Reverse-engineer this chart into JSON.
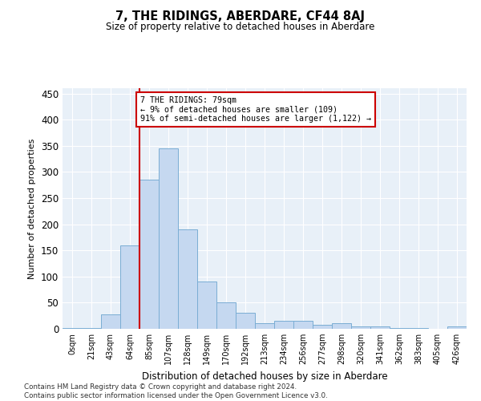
{
  "title": "7, THE RIDINGS, ABERDARE, CF44 8AJ",
  "subtitle": "Size of property relative to detached houses in Aberdare",
  "xlabel": "Distribution of detached houses by size in Aberdare",
  "ylabel": "Number of detached properties",
  "bar_labels": [
    "0sqm",
    "21sqm",
    "43sqm",
    "64sqm",
    "85sqm",
    "107sqm",
    "128sqm",
    "149sqm",
    "170sqm",
    "192sqm",
    "213sqm",
    "234sqm",
    "256sqm",
    "277sqm",
    "298sqm",
    "320sqm",
    "341sqm",
    "362sqm",
    "383sqm",
    "405sqm",
    "426sqm"
  ],
  "bar_values": [
    2,
    2,
    28,
    160,
    285,
    345,
    190,
    90,
    50,
    30,
    10,
    15,
    15,
    8,
    10,
    5,
    5,
    2,
    1,
    0,
    5
  ],
  "bar_color": "#c5d8f0",
  "bar_edge_color": "#7aadd4",
  "vline_x_index": 3,
  "vline_color": "#cc0000",
  "annotation_text": "7 THE RIDINGS: 79sqm\n← 9% of detached houses are smaller (109)\n91% of semi-detached houses are larger (1,122) →",
  "annotation_box_color": "#ffffff",
  "annotation_box_edge": "#cc0000",
  "ylim": [
    0,
    460
  ],
  "yticks": [
    0,
    50,
    100,
    150,
    200,
    250,
    300,
    350,
    400,
    450
  ],
  "bg_color": "#e8f0f8",
  "footer_line1": "Contains HM Land Registry data © Crown copyright and database right 2024.",
  "footer_line2": "Contains public sector information licensed under the Open Government Licence v3.0."
}
